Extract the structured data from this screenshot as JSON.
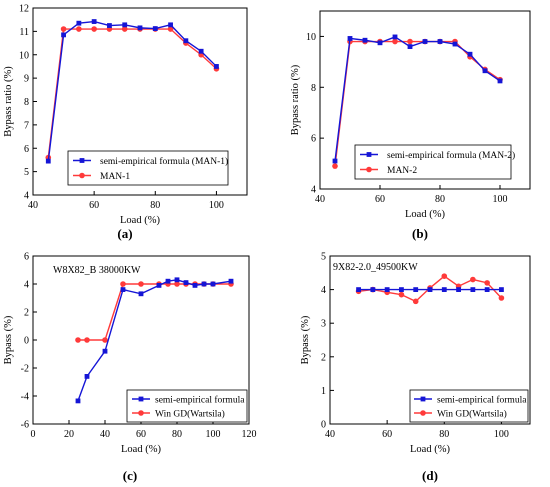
{
  "colors": {
    "semi_empirical": "#1515d6",
    "measured": "#ff3a3a",
    "axis": "#000000"
  },
  "chart_data": [
    {
      "id": "a",
      "type": "line",
      "panel_label": "(a)",
      "title": "",
      "annotation": "",
      "xlabel": "Load (%)",
      "ylabel": "Bypass ratio (%)",
      "xlim": [
        40,
        110
      ],
      "ylim": [
        4,
        12
      ],
      "xticks": [
        40,
        60,
        80,
        100
      ],
      "yticks": [
        4,
        5,
        6,
        7,
        8,
        9,
        10,
        11,
        12
      ],
      "legend": "lower-center",
      "series": [
        {
          "name": "semi-empirical formula (MAN-1)",
          "marker": "square",
          "x": [
            45,
            50,
            55,
            60,
            65,
            70,
            75,
            80,
            85,
            90,
            95,
            100
          ],
          "y": [
            5.45,
            10.85,
            11.35,
            11.42,
            11.25,
            11.28,
            11.15,
            11.12,
            11.28,
            10.6,
            10.15,
            9.5
          ]
        },
        {
          "name": "MAN-1",
          "marker": "circle",
          "x": [
            45,
            50,
            55,
            60,
            65,
            70,
            75,
            80,
            85,
            90,
            95,
            100
          ],
          "y": [
            5.6,
            11.1,
            11.1,
            11.1,
            11.1,
            11.1,
            11.1,
            11.1,
            11.1,
            10.5,
            10.0,
            9.4
          ]
        }
      ]
    },
    {
      "id": "b",
      "type": "line",
      "panel_label": "(b)",
      "title": "",
      "annotation": "",
      "xlabel": "Load (%)",
      "ylabel": "Bypass ratio (%)",
      "xlim": [
        40,
        110
      ],
      "ylim": [
        4,
        11
      ],
      "xticks": [
        40,
        60,
        80,
        100
      ],
      "yticks": [
        4,
        6,
        8,
        10
      ],
      "legend": "lower-center",
      "series": [
        {
          "name": "semi-empirical formula (MAN-2)",
          "marker": "square",
          "x": [
            45,
            50,
            55,
            60,
            65,
            70,
            75,
            80,
            85,
            90,
            95,
            100
          ],
          "y": [
            5.1,
            9.92,
            9.85,
            9.75,
            9.98,
            9.6,
            9.8,
            9.8,
            9.7,
            9.3,
            8.65,
            8.25
          ]
        },
        {
          "name": "MAN-2",
          "marker": "circle",
          "x": [
            45,
            50,
            55,
            60,
            65,
            70,
            75,
            80,
            85,
            90,
            95,
            100
          ],
          "y": [
            4.9,
            9.8,
            9.8,
            9.8,
            9.8,
            9.8,
            9.8,
            9.8,
            9.8,
            9.2,
            8.7,
            8.3
          ]
        }
      ]
    },
    {
      "id": "c",
      "type": "line",
      "panel_label": "(c)",
      "title": "",
      "annotation": "W8X82_B 38000KW",
      "xlabel": "Load (%)",
      "ylabel": "Bypass (%)",
      "xlim": [
        0,
        120
      ],
      "ylim": [
        -6,
        6
      ],
      "xticks": [
        0,
        20,
        40,
        60,
        80,
        100,
        120
      ],
      "yticks": [
        -6,
        -4,
        -2,
        0,
        2,
        4,
        6
      ],
      "legend": "lower-right",
      "series": [
        {
          "name": "semi-empirical formula",
          "marker": "square",
          "x": [
            25,
            30,
            40,
            50,
            60,
            70,
            75,
            80,
            85,
            90,
            95,
            100,
            110
          ],
          "y": [
            -4.35,
            -2.6,
            -0.8,
            3.6,
            3.3,
            3.9,
            4.2,
            4.3,
            4.1,
            3.9,
            4.0,
            4.0,
            4.2
          ]
        },
        {
          "name": "Win GD(Wartsila)",
          "marker": "circle",
          "x": [
            25,
            30,
            40,
            50,
            60,
            70,
            75,
            80,
            85,
            90,
            95,
            100,
            110
          ],
          "y": [
            0,
            0,
            0,
            4.0,
            4.0,
            4.0,
            4.0,
            4.0,
            4.0,
            4.0,
            4.0,
            4.0,
            4.0
          ]
        }
      ]
    },
    {
      "id": "d",
      "type": "line",
      "panel_label": "(d)",
      "title": "",
      "annotation": "9X82-2.0_49500KW",
      "xlabel": "Load (%)",
      "ylabel": "Bypass (%)",
      "xlim": [
        40,
        110
      ],
      "ylim": [
        0,
        5
      ],
      "xticks": [
        40,
        60,
        80,
        100
      ],
      "yticks": [
        0,
        1,
        2,
        3,
        4,
        5
      ],
      "legend": "lower-right",
      "series": [
        {
          "name": "semi-empirical formula",
          "marker": "square",
          "x": [
            50,
            55,
            60,
            65,
            70,
            75,
            80,
            85,
            90,
            95,
            100
          ],
          "y": [
            4.0,
            4.0,
            4.0,
            4.0,
            4.0,
            4.0,
            4.0,
            4.0,
            4.0,
            4.0,
            4.0
          ]
        },
        {
          "name": "Win GD(Wartsila)",
          "marker": "circle",
          "x": [
            50,
            55,
            60,
            65,
            70,
            75,
            80,
            85,
            90,
            95,
            100
          ],
          "y": [
            3.95,
            4.0,
            3.92,
            3.85,
            3.65,
            4.05,
            4.4,
            4.1,
            4.3,
            4.2,
            3.75
          ]
        }
      ]
    }
  ]
}
